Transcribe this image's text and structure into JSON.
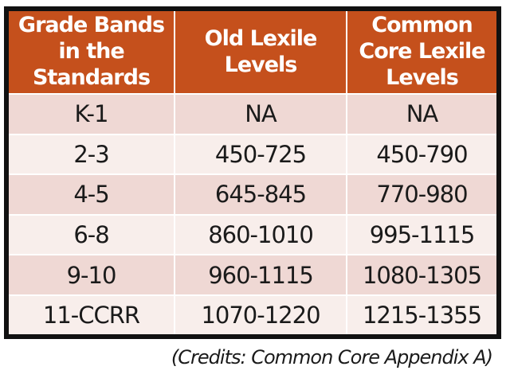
{
  "table": {
    "headers": [
      "Grade Bands in the Standards",
      "Old Lexile Levels",
      "Common Core Lexile Levels"
    ],
    "rows": [
      [
        "K-1",
        "NA",
        "NA"
      ],
      [
        "2-3",
        "450-725",
        "450-790"
      ],
      [
        "4-5",
        "645-845",
        "770-980"
      ],
      [
        "6-8",
        "860-1010",
        "995-1115"
      ],
      [
        "9-10",
        "960-1115",
        "1080-1305"
      ],
      [
        "11-CCRR",
        "1070-1220",
        "1215-1355"
      ]
    ]
  },
  "credit": "(Credits: Common Core Appendix A)",
  "colors": {
    "header_bg": "#c5501c",
    "header_text": "#ffffff",
    "row_shaded": "#efd8d4",
    "row_plain": "#f8eeeb",
    "frame": "#111111"
  }
}
